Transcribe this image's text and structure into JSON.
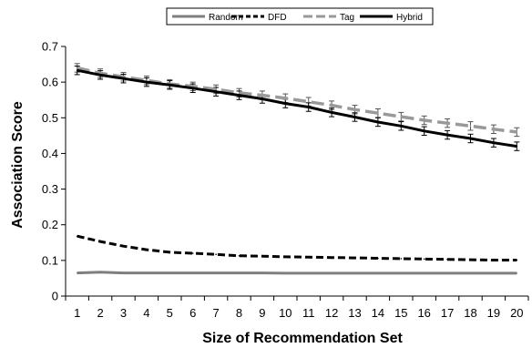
{
  "chart_data": {
    "type": "line",
    "xlabel": "Size of Recommendation Set",
    "ylabel": "Association Score",
    "x": [
      1,
      2,
      3,
      4,
      5,
      6,
      7,
      8,
      9,
      10,
      11,
      12,
      13,
      14,
      15,
      16,
      17,
      18,
      19,
      20
    ],
    "ylim": [
      0,
      0.7
    ],
    "yticks": [
      "0",
      "0.1",
      "0.2",
      "0.3",
      "0.4",
      "0.5",
      "0.6",
      "0.7"
    ],
    "grid": false,
    "legend_position": "top-center",
    "series": [
      {
        "name": "Random",
        "color": "#7f7f7f",
        "style": "solid",
        "values": [
          0.065,
          0.067,
          0.065,
          0.065,
          0.065,
          0.065,
          0.065,
          0.065,
          0.065,
          0.064,
          0.064,
          0.064,
          0.064,
          0.064,
          0.064,
          0.064,
          0.064,
          0.064,
          0.064,
          0.064
        ]
      },
      {
        "name": "DFD",
        "color": "#000000",
        "style": "dashed",
        "values": [
          0.168,
          0.153,
          0.14,
          0.13,
          0.123,
          0.12,
          0.117,
          0.113,
          0.112,
          0.11,
          0.109,
          0.108,
          0.107,
          0.106,
          0.105,
          0.104,
          0.103,
          0.102,
          0.101,
          0.101
        ]
      },
      {
        "name": "Tag",
        "color": "#999999",
        "style": "dashed",
        "values": [
          0.64,
          0.625,
          0.615,
          0.605,
          0.595,
          0.588,
          0.58,
          0.57,
          0.563,
          0.555,
          0.545,
          0.535,
          0.523,
          0.513,
          0.503,
          0.493,
          0.485,
          0.477,
          0.468,
          0.46
        ],
        "errors": [
          0.012,
          0.012,
          0.012,
          0.012,
          0.012,
          0.012,
          0.012,
          0.012,
          0.012,
          0.012,
          0.012,
          0.012,
          0.012,
          0.012,
          0.012,
          0.012,
          0.012,
          0.012,
          0.012,
          0.012
        ]
      },
      {
        "name": "Hybrid",
        "color": "#000000",
        "style": "solid",
        "values": [
          0.633,
          0.62,
          0.61,
          0.6,
          0.592,
          0.583,
          0.573,
          0.563,
          0.553,
          0.54,
          0.53,
          0.515,
          0.502,
          0.488,
          0.477,
          0.463,
          0.452,
          0.442,
          0.43,
          0.42
        ],
        "errors": [
          0.012,
          0.012,
          0.012,
          0.012,
          0.012,
          0.012,
          0.012,
          0.012,
          0.012,
          0.012,
          0.012,
          0.012,
          0.012,
          0.012,
          0.012,
          0.012,
          0.012,
          0.012,
          0.012,
          0.012
        ]
      }
    ]
  }
}
